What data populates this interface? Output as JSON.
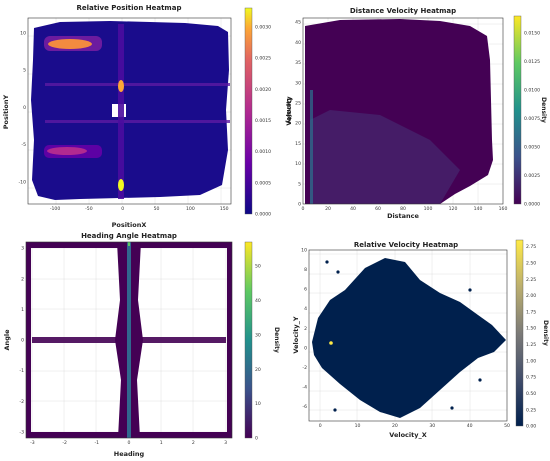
{
  "chart_data": [
    {
      "type": "heatmap",
      "title": "Relative Position Heatmap",
      "xlabel": "PositionX",
      "ylabel": "PositionY",
      "colorbar_label": "Density",
      "colormap": "plasma",
      "xlim": [
        -140,
        160
      ],
      "ylim": [
        -13,
        12
      ],
      "xticks": [
        -100,
        -50,
        0,
        50,
        100,
        150
      ],
      "yticks": [
        10,
        5,
        0,
        -5,
        -10
      ],
      "cbar_range": [
        0,
        0.0033
      ],
      "cbar_ticks": [
        0.0005,
        0.001,
        0.0015,
        0.002,
        0.0025,
        0.003
      ],
      "cbar_tick_labels": [
        "0.0005",
        "0.0010",
        "0.0015",
        "0.0020",
        "0.0025",
        "0.0030"
      ],
      "cbar_min_label": "0.0000"
    },
    {
      "type": "heatmap",
      "title": "Distance Velocity Heatmap",
      "xlabel": "Distance",
      "ylabel": "Velocity",
      "colorbar_label": "Density",
      "colormap": "viridis",
      "xlim": [
        0,
        160
      ],
      "ylim": [
        0,
        46
      ],
      "xticks": [
        0,
        20,
        40,
        60,
        80,
        100,
        120,
        140,
        160
      ],
      "yticks": [
        0,
        5,
        10,
        15,
        20,
        25,
        30,
        35,
        40,
        45
      ],
      "cbar_range": [
        0,
        0.0165
      ],
      "cbar_ticks": [
        0.0025,
        0.005,
        0.0075,
        0.01,
        0.0125,
        0.015
      ],
      "cbar_tick_labels": [
        "0.0025",
        "0.0050",
        "0.0075",
        "0.0100",
        "0.0125",
        "0.0150"
      ],
      "cbar_min_label": "0.0000"
    },
    {
      "type": "heatmap",
      "title": "Heading Angle Heatmap",
      "xlabel": "Heading",
      "ylabel": "Angle",
      "colorbar_label": "Density",
      "colormap": "viridis",
      "xlim": [
        -3.2,
        3.2
      ],
      "ylim": [
        -3.2,
        3.2
      ],
      "xticks": [
        -3,
        -2,
        -1,
        0,
        1,
        2,
        3
      ],
      "yticks": [
        3,
        2,
        1,
        0,
        -1,
        -2,
        -3
      ],
      "cbar_range": [
        0,
        57
      ],
      "cbar_ticks": [
        10,
        20,
        30,
        40,
        50
      ],
      "cbar_tick_labels": [
        "10",
        "20",
        "30",
        "40",
        "50"
      ],
      "cbar_min_label": "0"
    },
    {
      "type": "heatmap",
      "title": "Relative Velocity Heatmap",
      "xlabel": "Velocity_X",
      "ylabel": "Velocity_Y",
      "colorbar_label": "Density",
      "colormap": "cividis",
      "xlim": [
        -3,
        50
      ],
      "ylim": [
        -7.5,
        10
      ],
      "xticks": [
        0,
        10,
        20,
        30,
        40,
        50
      ],
      "yticks": [
        10,
        8,
        6,
        4,
        2,
        0,
        -2,
        -4,
        -6
      ],
      "cbar_range": [
        0,
        2.85
      ],
      "cbar_ticks": [
        0.25,
        0.5,
        0.75,
        1.0,
        1.25,
        1.5,
        1.75,
        2.0,
        2.25,
        2.5,
        2.75
      ],
      "cbar_tick_labels": [
        "0.25",
        "0.50",
        "0.75",
        "1.00",
        "1.25",
        "1.50",
        "1.75",
        "2.00",
        "2.25",
        "2.50",
        "2.75"
      ],
      "cbar_min_label": "0.00"
    }
  ]
}
